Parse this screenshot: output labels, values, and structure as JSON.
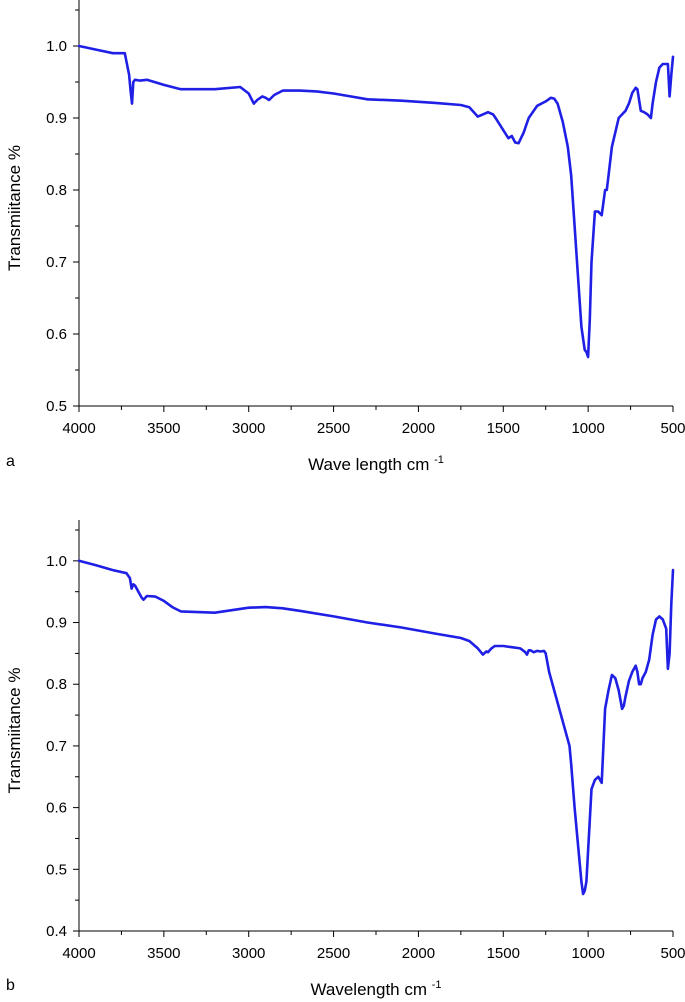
{
  "colors": {
    "series": "#1f1fe6",
    "axis": "#000000",
    "background": "#ffffff"
  },
  "chart_data": [
    {
      "type": "line",
      "panel_label": "a",
      "xlabel": "Wave length cm",
      "xlabel_sup": "-1",
      "ylabel": "Transmiitance %",
      "xlim": [
        4000,
        500
      ],
      "ylim": [
        0.5,
        1.05
      ],
      "x_ticks": [
        4000,
        3500,
        3000,
        2500,
        2000,
        1500,
        1000,
        500
      ],
      "x_tick_labels": [
        "4000",
        "3500",
        "3000",
        "2500",
        "2000",
        "1500",
        "1000",
        "500"
      ],
      "y_ticks": [
        0.5,
        0.6,
        0.7,
        0.8,
        0.9,
        1.0
      ],
      "y_tick_labels": [
        "0.5",
        "0.6",
        "0.7",
        "0.8",
        "0.9",
        "1.0"
      ],
      "grid": false,
      "series": [
        {
          "x": [
            4000,
            3900,
            3800,
            3730,
            3705,
            3695,
            3688,
            3680,
            3670,
            3640,
            3600,
            3500,
            3400,
            3200,
            3050,
            3000,
            2970,
            2950,
            2920,
            2900,
            2880,
            2850,
            2800,
            2700,
            2600,
            2500,
            2400,
            2300,
            2100,
            1900,
            1750,
            1700,
            1650,
            1620,
            1590,
            1560,
            1540,
            1500,
            1470,
            1450,
            1430,
            1410,
            1380,
            1350,
            1300,
            1250,
            1220,
            1200,
            1180,
            1150,
            1120,
            1100,
            1080,
            1060,
            1040,
            1020,
            1010,
            1000,
            990,
            980,
            960,
            940,
            920,
            900,
            890,
            880,
            860,
            840,
            820,
            800,
            780,
            760,
            740,
            720,
            710,
            700,
            690,
            670,
            650,
            630,
            620,
            600,
            580,
            560,
            550,
            530,
            520,
            510,
            500
          ],
          "y": [
            1.0,
            0.995,
            0.99,
            0.99,
            0.96,
            0.935,
            0.92,
            0.95,
            0.953,
            0.952,
            0.953,
            0.946,
            0.94,
            0.94,
            0.943,
            0.934,
            0.92,
            0.925,
            0.93,
            0.928,
            0.925,
            0.932,
            0.938,
            0.938,
            0.937,
            0.934,
            0.93,
            0.926,
            0.924,
            0.921,
            0.918,
            0.915,
            0.902,
            0.905,
            0.908,
            0.905,
            0.898,
            0.883,
            0.872,
            0.875,
            0.866,
            0.865,
            0.88,
            0.9,
            0.917,
            0.923,
            0.928,
            0.927,
            0.92,
            0.895,
            0.86,
            0.82,
            0.75,
            0.68,
            0.61,
            0.578,
            0.575,
            0.568,
            0.62,
            0.7,
            0.77,
            0.77,
            0.765,
            0.8,
            0.8,
            0.82,
            0.86,
            0.88,
            0.9,
            0.905,
            0.91,
            0.92,
            0.935,
            0.942,
            0.94,
            0.925,
            0.91,
            0.908,
            0.905,
            0.9,
            0.92,
            0.95,
            0.97,
            0.975,
            0.975,
            0.975,
            0.93,
            0.96,
            0.985
          ]
        }
      ]
    },
    {
      "type": "line",
      "panel_label": "b",
      "xlabel": "Wavelength cm",
      "xlabel_sup": "-1",
      "ylabel": "Transmiitance %",
      "xlim": [
        4000,
        500
      ],
      "ylim": [
        0.4,
        1.05
      ],
      "x_ticks": [
        4000,
        3500,
        3000,
        2500,
        2000,
        1500,
        1000,
        500
      ],
      "x_tick_labels": [
        "4000",
        "3500",
        "3000",
        "2500",
        "2000",
        "1500",
        "1000",
        "500"
      ],
      "y_ticks": [
        0.4,
        0.5,
        0.6,
        0.7,
        0.8,
        0.9,
        1.0
      ],
      "y_tick_labels": [
        "0.4",
        "0.5",
        "0.6",
        "0.7",
        "0.8",
        "0.9",
        "1.0"
      ],
      "grid": false,
      "series": [
        {
          "x": [
            4000,
            3900,
            3800,
            3720,
            3700,
            3690,
            3680,
            3670,
            3650,
            3630,
            3620,
            3600,
            3550,
            3500,
            3450,
            3400,
            3300,
            3200,
            3100,
            3000,
            2900,
            2800,
            2700,
            2500,
            2300,
            2100,
            1900,
            1750,
            1700,
            1650,
            1620,
            1600,
            1590,
            1570,
            1560,
            1550,
            1500,
            1450,
            1400,
            1370,
            1360,
            1350,
            1340,
            1320,
            1300,
            1280,
            1260,
            1250,
            1230,
            1200,
            1170,
            1140,
            1110,
            1100,
            1080,
            1060,
            1040,
            1030,
            1020,
            1010,
            1000,
            990,
            980,
            960,
            940,
            920,
            910,
            900,
            880,
            860,
            840,
            820,
            800,
            790,
            780,
            760,
            740,
            720,
            710,
            700,
            690,
            680,
            660,
            640,
            620,
            600,
            580,
            560,
            540,
            530,
            520,
            510,
            500
          ],
          "y": [
            1.0,
            0.993,
            0.985,
            0.98,
            0.972,
            0.955,
            0.962,
            0.96,
            0.95,
            0.94,
            0.937,
            0.943,
            0.942,
            0.935,
            0.925,
            0.918,
            0.917,
            0.916,
            0.92,
            0.924,
            0.925,
            0.923,
            0.919,
            0.91,
            0.9,
            0.892,
            0.882,
            0.875,
            0.87,
            0.858,
            0.848,
            0.853,
            0.852,
            0.858,
            0.86,
            0.862,
            0.862,
            0.86,
            0.858,
            0.852,
            0.848,
            0.855,
            0.855,
            0.852,
            0.854,
            0.853,
            0.854,
            0.85,
            0.82,
            0.79,
            0.76,
            0.73,
            0.7,
            0.67,
            0.6,
            0.54,
            0.48,
            0.46,
            0.465,
            0.48,
            0.53,
            0.58,
            0.63,
            0.645,
            0.65,
            0.64,
            0.7,
            0.76,
            0.79,
            0.815,
            0.81,
            0.79,
            0.76,
            0.765,
            0.78,
            0.805,
            0.82,
            0.83,
            0.82,
            0.8,
            0.8,
            0.81,
            0.82,
            0.84,
            0.88,
            0.905,
            0.91,
            0.905,
            0.89,
            0.825,
            0.85,
            0.93,
            0.985
          ]
        }
      ]
    }
  ]
}
